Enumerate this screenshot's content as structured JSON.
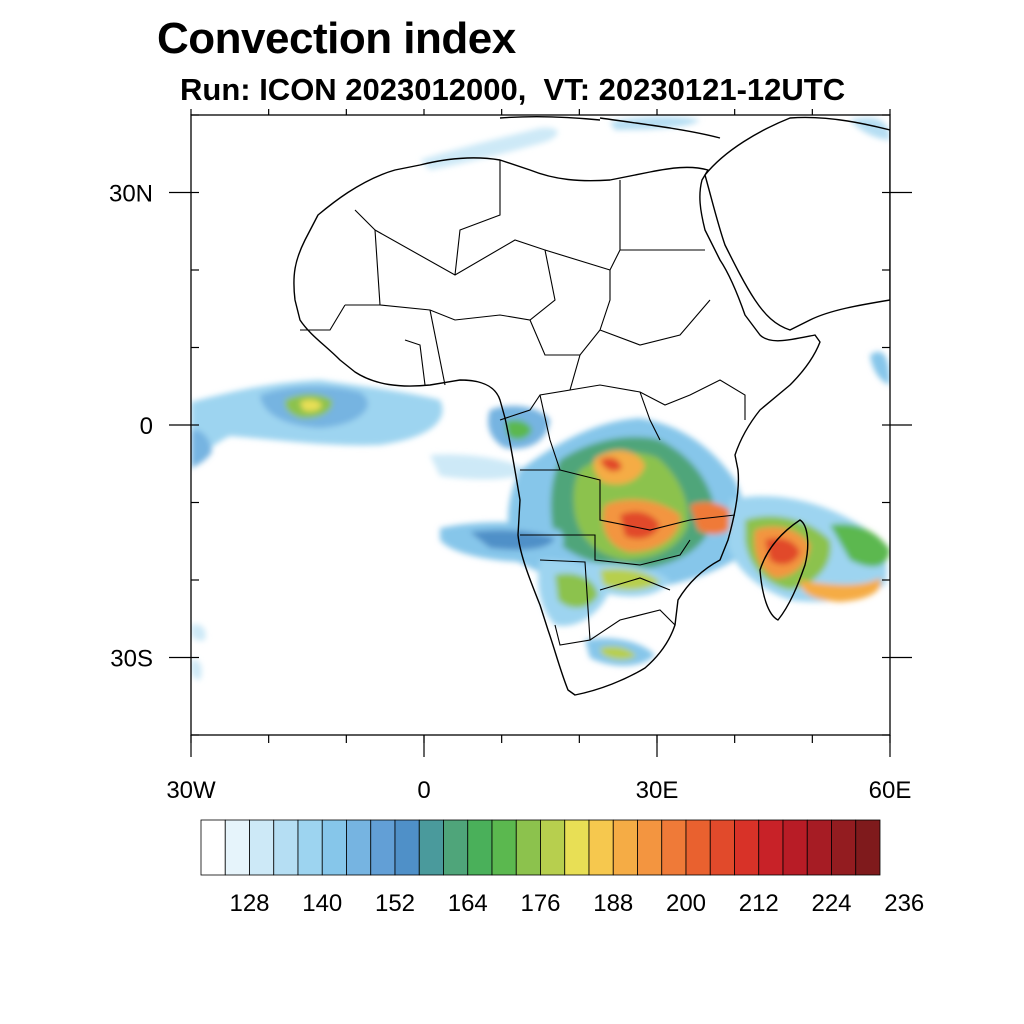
{
  "title": "Convection index",
  "subtitle": "Run: ICON 2023012000,  VT: 20230121-12UTC",
  "map": {
    "lon_range": [
      -30,
      60
    ],
    "lat_range": [
      -40,
      40
    ],
    "x_ticks": [
      {
        "lon": -30,
        "label": "30W"
      },
      {
        "lon": 0,
        "label": "0"
      },
      {
        "lon": 30,
        "label": "30E"
      },
      {
        "lon": 60,
        "label": "60E"
      }
    ],
    "y_ticks": [
      {
        "lat": 30,
        "label": "30N"
      },
      {
        "lat": 0,
        "label": "0"
      },
      {
        "lat": -30,
        "label": "30S"
      }
    ],
    "minor_lon_step": 10,
    "minor_lat_step": 10
  },
  "colorbar": {
    "colors": [
      "#ffffff",
      "#e6f4fb",
      "#cde9f7",
      "#b5def3",
      "#9dd4f0",
      "#86c6ea",
      "#76b4e1",
      "#629fd6",
      "#4f90c8",
      "#4a9a9c",
      "#4fa57a",
      "#4ab05a",
      "#5bb84f",
      "#8cc24d",
      "#b7cf4e",
      "#e8df55",
      "#f6c84e",
      "#f5ac45",
      "#f39540",
      "#ef7a38",
      "#e9612f",
      "#e14a2b",
      "#d83228",
      "#c82228",
      "#b81c26",
      "#a61c24",
      "#931c20",
      "#7f1a1c"
    ],
    "labels": [
      "128",
      "140",
      "152",
      "164",
      "176",
      "188",
      "200",
      "212",
      "224",
      "236"
    ]
  }
}
